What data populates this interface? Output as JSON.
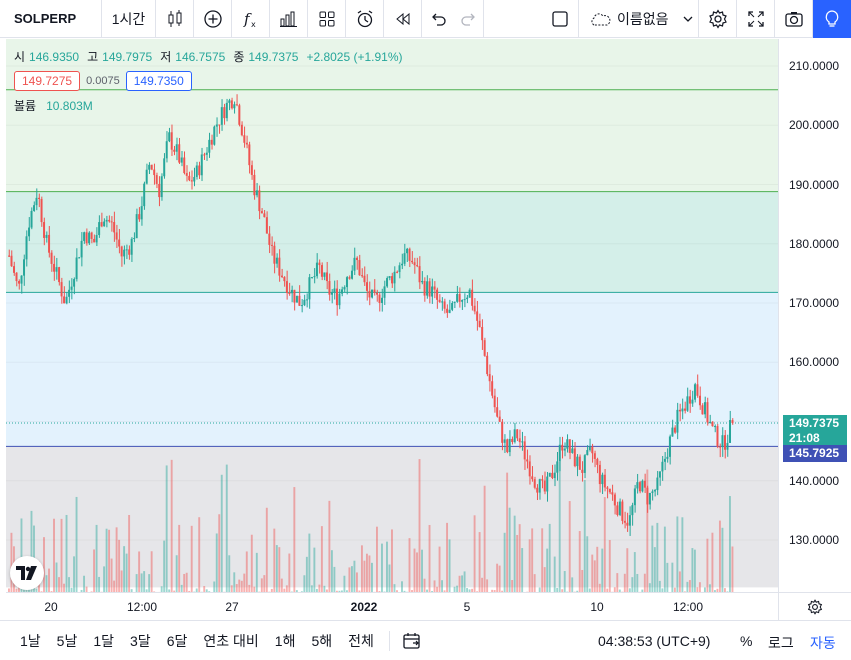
{
  "toolbar": {
    "symbol": "SOLPERP",
    "interval": "1시간",
    "layout_name": "이름없음",
    "icons": [
      "candle-style-icon",
      "add-indicator-icon",
      "function-icon",
      "bar-chart-icon",
      "templates-icon",
      "alert-icon",
      "replay-icon",
      "undo-icon",
      "redo-icon",
      "layout-square-icon",
      "cloud-icon",
      "chevron-down-icon",
      "settings-icon",
      "fullscreen-icon",
      "camera-icon",
      "idea-lightbulb-icon"
    ]
  },
  "legend": {
    "open_label": "시",
    "open": "146.9350",
    "high_label": "고",
    "high": "149.7975",
    "low_label": "저",
    "low": "146.7575",
    "close_label": "종",
    "close": "149.7375",
    "change": "+2.8025 (+1.91%)",
    "bid": "149.7275",
    "spread": "0.0075",
    "ask": "149.7350",
    "volume_label": "볼륨",
    "volume": "10.803M"
  },
  "price_axis": {
    "ticks": [
      "210.0000",
      "200.0000",
      "190.0000",
      "180.0000",
      "170.0000",
      "160.0000",
      "150.0000",
      "140.0000",
      "130.0000"
    ],
    "last_price": "149.7375",
    "countdown": "21:08",
    "line_price": "145.7925"
  },
  "time_axis": {
    "ticks": [
      {
        "label": "20",
        "bold": false
      },
      {
        "label": "12:00",
        "bold": false
      },
      {
        "label": "27",
        "bold": false
      },
      {
        "label": "2022",
        "bold": true
      },
      {
        "label": "5",
        "bold": false
      },
      {
        "label": "10",
        "bold": false
      },
      {
        "label": "12:00",
        "bold": false
      }
    ]
  },
  "bottom_bar": {
    "ranges": [
      "1날",
      "5날",
      "1달",
      "3달",
      "6달",
      "연초 대비",
      "1해",
      "5해",
      "전체"
    ],
    "clock": "04:38:53 (UTC+9)",
    "percent": "%",
    "log": "로그",
    "auto": "자동"
  },
  "colors": {
    "up": "#26a69a",
    "down": "#ef5350",
    "zone_top": "#e8f5e9",
    "zone_2": "#d4efe9",
    "zone_3": "#e3f2fd",
    "zone_bottom": "#e6e6e9",
    "accent": "#2962ff"
  },
  "chart_data": {
    "type": "candlestick",
    "ylim": [
      122,
      215
    ],
    "ticks": [
      210,
      200,
      190,
      180,
      170,
      160,
      150,
      140,
      130
    ],
    "horizontal_lines": [
      206,
      188.8,
      171.8,
      145.7925
    ],
    "zones": [
      {
        "from": 215,
        "to": 188.8,
        "color": "zone_top"
      },
      {
        "from": 188.8,
        "to": 171.8,
        "color": "zone_2"
      },
      {
        "from": 171.8,
        "to": 145.7925,
        "color": "zone_3"
      },
      {
        "from": 145.7925,
        "to": 122,
        "color": "zone_bottom"
      }
    ],
    "last_price": 149.7375,
    "price_path": [
      178,
      172,
      183,
      189,
      180,
      175,
      170,
      176,
      182,
      180,
      185,
      183,
      178,
      180,
      186,
      194,
      189,
      198,
      195,
      190,
      192,
      196,
      200,
      203,
      205,
      198,
      190,
      185,
      178,
      175,
      172,
      170,
      173,
      176,
      172,
      171,
      175,
      177,
      172,
      170,
      173,
      175,
      178,
      177,
      173,
      172,
      169,
      168,
      171,
      172,
      166,
      158,
      150,
      145,
      148,
      144,
      140,
      138,
      142,
      147,
      144,
      142,
      145,
      140,
      138,
      135,
      133,
      140,
      137,
      139,
      145,
      150,
      153,
      156,
      152,
      148,
      146,
      149.74
    ],
    "volume_max": 100
  }
}
